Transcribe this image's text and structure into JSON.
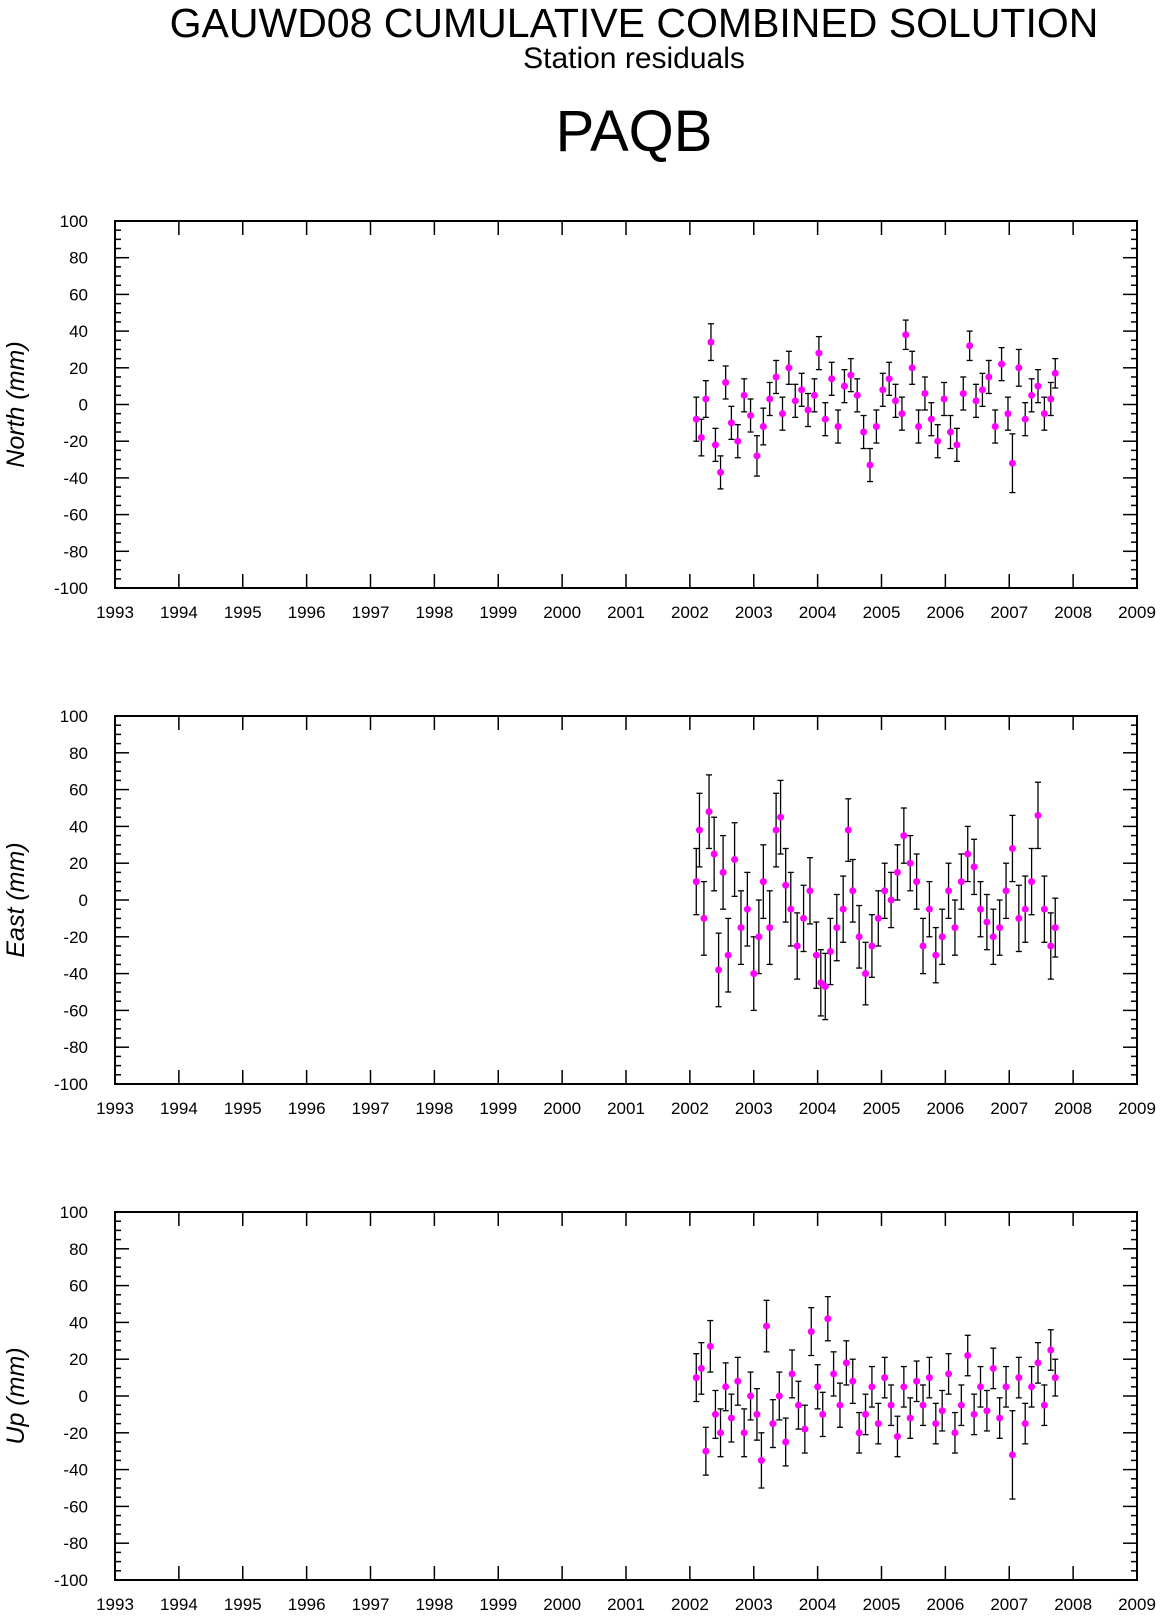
{
  "header": {
    "title": "GAUWD08 CUMULATIVE COMBINED SOLUTION",
    "subtitle": "Station residuals",
    "station": "PAQB"
  },
  "colors": {
    "marker": "#ff00ff",
    "errorbar": "#000000",
    "axis": "#000000"
  },
  "chart_data": [
    {
      "type": "scatter",
      "ylabel": "North (mm)",
      "xlim": [
        1993,
        2009
      ],
      "ylim": [
        -100,
        100
      ],
      "x_ticks": [
        "1993",
        "1994",
        "1995",
        "1996",
        "1997",
        "1998",
        "1999",
        "2000",
        "2001",
        "2002",
        "2003",
        "2004",
        "2005",
        "2006",
        "2007",
        "2008",
        "2009"
      ],
      "y_ticks": [
        "100",
        "80",
        "60",
        "40",
        "20",
        "0",
        "-20",
        "-40",
        "-60",
        "-80",
        "-100"
      ],
      "series": [
        {
          "x": [
            2002.1,
            2002.18,
            2002.25,
            2002.33,
            2002.4,
            2002.48,
            2002.56,
            2002.65,
            2002.75,
            2002.85,
            2002.95,
            2003.05,
            2003.15,
            2003.25,
            2003.35,
            2003.45,
            2003.55,
            2003.65,
            2003.75,
            2003.85,
            2003.95,
            2004.02,
            2004.12,
            2004.22,
            2004.32,
            2004.42,
            2004.52,
            2004.62,
            2004.72,
            2004.82,
            2004.92,
            2005.02,
            2005.12,
            2005.22,
            2005.32,
            2005.38,
            2005.48,
            2005.58,
            2005.68,
            2005.78,
            2005.88,
            2005.98,
            2006.08,
            2006.18,
            2006.28,
            2006.38,
            2006.48,
            2006.58,
            2006.68,
            2006.78,
            2006.88,
            2006.98,
            2007.05,
            2007.15,
            2007.25,
            2007.35,
            2007.45,
            2007.55,
            2007.65,
            2007.72
          ],
          "y": [
            -8,
            -18,
            3,
            34,
            -22,
            -37,
            12,
            -10,
            -20,
            5,
            -6,
            -28,
            -12,
            3,
            15,
            -5,
            20,
            2,
            8,
            -3,
            5,
            28,
            -8,
            14,
            -12,
            10,
            16,
            5,
            -15,
            -33,
            -12,
            8,
            14,
            2,
            -5,
            38,
            20,
            -12,
            6,
            -8,
            -20,
            3,
            -15,
            -22,
            6,
            32,
            2,
            8,
            15,
            -12,
            22,
            -5,
            -32,
            20,
            -8,
            5,
            10,
            -5,
            3,
            17
          ],
          "err": [
            12,
            10,
            10,
            10,
            9,
            9,
            9,
            9,
            9,
            9,
            9,
            11,
            10,
            9,
            9,
            9,
            9,
            9,
            9,
            9,
            9,
            9,
            9,
            9,
            9,
            9,
            9,
            9,
            9,
            9,
            9,
            9,
            9,
            9,
            9,
            8,
            9,
            9,
            9,
            9,
            9,
            9,
            9,
            9,
            9,
            8,
            9,
            9,
            9,
            9,
            9,
            9,
            16,
            10,
            9,
            9,
            9,
            9,
            9,
            8
          ]
        }
      ]
    },
    {
      "type": "scatter",
      "ylabel": "East (mm)",
      "xlim": [
        1993,
        2009
      ],
      "ylim": [
        -100,
        100
      ],
      "x_ticks": [
        "1993",
        "1994",
        "1995",
        "1996",
        "1997",
        "1998",
        "1999",
        "2000",
        "2001",
        "2002",
        "2003",
        "2004",
        "2005",
        "2006",
        "2007",
        "2008",
        "2009"
      ],
      "y_ticks": [
        "100",
        "80",
        "60",
        "40",
        "20",
        "0",
        "-20",
        "-40",
        "-60",
        "-80",
        "-100"
      ],
      "series": [
        {
          "x": [
            2002.1,
            2002.15,
            2002.22,
            2002.3,
            2002.38,
            2002.45,
            2002.52,
            2002.6,
            2002.7,
            2002.8,
            2002.9,
            2003.0,
            2003.08,
            2003.15,
            2003.25,
            2003.35,
            2003.42,
            2003.5,
            2003.58,
            2003.68,
            2003.78,
            2003.88,
            2003.98,
            2004.05,
            2004.12,
            2004.2,
            2004.3,
            2004.4,
            2004.48,
            2004.55,
            2004.65,
            2004.75,
            2004.85,
            2004.95,
            2005.05,
            2005.15,
            2005.25,
            2005.35,
            2005.45,
            2005.55,
            2005.65,
            2005.75,
            2005.85,
            2005.95,
            2006.05,
            2006.15,
            2006.25,
            2006.35,
            2006.45,
            2006.55,
            2006.65,
            2006.75,
            2006.85,
            2006.95,
            2007.05,
            2007.15,
            2007.25,
            2007.35,
            2007.45,
            2007.55,
            2007.65,
            2007.72
          ],
          "y": [
            10,
            38,
            -10,
            48,
            25,
            -38,
            15,
            -30,
            22,
            -15,
            -5,
            -40,
            -20,
            10,
            -15,
            38,
            45,
            8,
            -5,
            -25,
            -10,
            5,
            -30,
            -45,
            -47,
            -28,
            -15,
            -5,
            38,
            5,
            -20,
            -40,
            -25,
            -10,
            5,
            0,
            15,
            35,
            20,
            10,
            -25,
            -5,
            -30,
            -20,
            5,
            -15,
            10,
            25,
            18,
            -5,
            -12,
            -20,
            -15,
            5,
            28,
            -10,
            -5,
            10,
            46,
            -5,
            -25,
            -15
          ],
          "err": [
            18,
            20,
            20,
            20,
            20,
            20,
            20,
            20,
            20,
            20,
            20,
            20,
            20,
            20,
            20,
            20,
            20,
            20,
            20,
            18,
            18,
            18,
            18,
            18,
            18,
            18,
            18,
            18,
            17,
            17,
            17,
            17,
            17,
            15,
            15,
            15,
            15,
            15,
            15,
            15,
            15,
            15,
            15,
            15,
            15,
            15,
            15,
            15,
            15,
            15,
            15,
            15,
            15,
            15,
            18,
            18,
            18,
            18,
            18,
            18,
            18,
            16
          ]
        }
      ]
    },
    {
      "type": "scatter",
      "ylabel": "Up (mm)",
      "xlim": [
        1993,
        2009
      ],
      "ylim": [
        -100,
        100
      ],
      "x_ticks": [
        "1993",
        "1994",
        "1995",
        "1996",
        "1997",
        "1998",
        "1999",
        "2000",
        "2001",
        "2002",
        "2003",
        "2004",
        "2005",
        "2006",
        "2007",
        "2008",
        "2009"
      ],
      "y_ticks": [
        "100",
        "80",
        "60",
        "40",
        "20",
        "0",
        "-20",
        "-40",
        "-60",
        "-80",
        "-100"
      ],
      "series": [
        {
          "x": [
            2002.1,
            2002.18,
            2002.25,
            2002.32,
            2002.4,
            2002.48,
            2002.56,
            2002.65,
            2002.75,
            2002.85,
            2002.95,
            2003.05,
            2003.12,
            2003.2,
            2003.3,
            2003.4,
            2003.5,
            2003.6,
            2003.7,
            2003.8,
            2003.9,
            2004.0,
            2004.08,
            2004.16,
            2004.25,
            2004.35,
            2004.45,
            2004.55,
            2004.65,
            2004.75,
            2004.85,
            2004.95,
            2005.05,
            2005.15,
            2005.25,
            2005.35,
            2005.45,
            2005.55,
            2005.65,
            2005.75,
            2005.85,
            2005.95,
            2006.05,
            2006.15,
            2006.25,
            2006.35,
            2006.45,
            2006.55,
            2006.65,
            2006.75,
            2006.85,
            2006.95,
            2007.05,
            2007.15,
            2007.25,
            2007.35,
            2007.45,
            2007.55,
            2007.65,
            2007.72
          ],
          "y": [
            10,
            15,
            -30,
            27,
            -10,
            -20,
            5,
            -12,
            8,
            -20,
            0,
            -10,
            -35,
            38,
            -15,
            0,
            -25,
            12,
            -5,
            -18,
            35,
            5,
            -10,
            42,
            12,
            -5,
            18,
            8,
            -20,
            -10,
            5,
            -15,
            10,
            -5,
            -22,
            5,
            -12,
            8,
            -5,
            10,
            -15,
            -8,
            12,
            -20,
            -5,
            22,
            -10,
            5,
            -8,
            15,
            -12,
            5,
            -32,
            10,
            -15,
            5,
            18,
            -5,
            25,
            10
          ],
          "err": [
            13,
            14,
            13,
            14,
            13,
            13,
            13,
            13,
            13,
            13,
            13,
            14,
            15,
            14,
            13,
            13,
            13,
            13,
            13,
            13,
            13,
            12,
            12,
            12,
            12,
            12,
            12,
            12,
            11,
            11,
            11,
            11,
            11,
            11,
            11,
            11,
            11,
            11,
            11,
            11,
            11,
            11,
            11,
            11,
            11,
            11,
            11,
            11,
            11,
            11,
            11,
            11,
            24,
            11,
            11,
            11,
            11,
            11,
            11,
            10
          ]
        }
      ]
    }
  ]
}
